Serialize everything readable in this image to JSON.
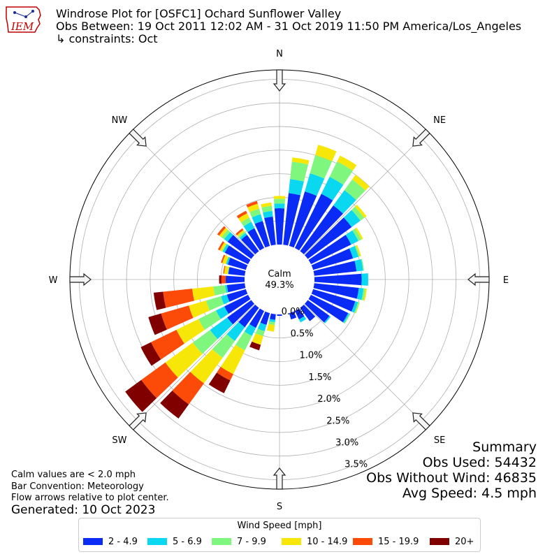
{
  "header": {
    "title": "Windrose Plot for [OSFC1] Ochard Sunflower Valley",
    "subtitle": "Obs Between: 19 Oct 2011 12:02 AM - 31 Oct 2019 11:50 PM America/Los_Angeles",
    "constraints": "↳ constraints: Oct",
    "logo_text": "IEM"
  },
  "summary": {
    "title": "Summary",
    "obs_used": "Obs Used: 54432",
    "obs_without_wind": "Obs Without Wind: 46835",
    "avg_speed": "Avg Speed: 4.5 mph"
  },
  "notes": {
    "calm_values": "Calm values are < 2.0 mph",
    "bar_convention": "Bar Convention: Meteorology",
    "flow_arrows": "Flow arrows relative to plot center.",
    "generated": "Generated: 10 Oct 2023"
  },
  "chart_data": {
    "type": "windrose",
    "center_label": "Calm",
    "center_value": "49.3%",
    "direction_labels": [
      "N",
      "NE",
      "E",
      "SE",
      "S",
      "SW",
      "W",
      "NW"
    ],
    "radial_ticks": [
      "0.0%",
      "0.5%",
      "1.0%",
      "1.5%",
      "2.0%",
      "2.5%",
      "3.0%",
      "3.5%"
    ],
    "rmax": 3.7,
    "colors": [
      "#0a2af5",
      "#0ad7f0",
      "#7ff77f",
      "#f7e709",
      "#fc4a09",
      "#800000"
    ],
    "legend_title": "Wind Speed [mph]",
    "speed_bins": [
      "2 - 4.9",
      "5 - 6.9",
      "7 - 9.9",
      "10 - 14.9",
      "15 - 19.9",
      "20+"
    ],
    "directions_deg": [
      0,
      10,
      20,
      30,
      40,
      50,
      60,
      70,
      80,
      90,
      100,
      110,
      120,
      130,
      140,
      150,
      160,
      170,
      180,
      190,
      200,
      210,
      220,
      230,
      240,
      250,
      260,
      270,
      280,
      290,
      300,
      310,
      320,
      330,
      340,
      350
    ],
    "series": [
      {
        "name": "2 - 4.9",
        "values": [
          0.77,
          1.1,
          1.2,
          1.28,
          1.2,
          1.15,
          0.95,
          0.88,
          0.9,
          1.0,
          0.95,
          0.93,
          0.88,
          0.57,
          0.35,
          0.2,
          0.14,
          0.0,
          0.03,
          0.12,
          0.26,
          0.4,
          0.51,
          0.63,
          0.56,
          0.42,
          0.38,
          0.4,
          0.35,
          0.4,
          0.55,
          0.62,
          0.43,
          0.47,
          0.55,
          0.6
        ]
      },
      {
        "name": "5 - 6.9",
        "values": [
          0.1,
          0.3,
          0.4,
          0.4,
          0.4,
          0.23,
          0.17,
          0.12,
          0.14,
          0.14,
          0.1,
          0.06,
          0.03,
          0.03,
          0.0,
          0.07,
          0.0,
          0.0,
          0.0,
          0.05,
          0.14,
          0.19,
          0.36,
          0.45,
          0.2,
          0.13,
          0.04,
          0.0,
          0.01,
          0.04,
          0.05,
          0.09,
          0.05,
          0.15,
          0.15,
          0.12
        ]
      },
      {
        "name": "7 - 9.9",
        "values": [
          0.1,
          0.37,
          0.4,
          0.36,
          0.28,
          0.1,
          0.07,
          0.03,
          0.02,
          0.0,
          0.04,
          0.03,
          0.02,
          0.0,
          0.0,
          0.0,
          0.0,
          0.0,
          0.0,
          0.06,
          0.11,
          0.34,
          0.44,
          0.45,
          0.41,
          0.33,
          0.25,
          0.0,
          0.0,
          0.0,
          0.02,
          0.07,
          0.04,
          0.1,
          0.12,
          0.11
        ]
      },
      {
        "name": "10 - 14.9",
        "values": [
          0.06,
          0.09,
          0.23,
          0.14,
          0.12,
          0.06,
          0.04,
          0.03,
          0.0,
          0.0,
          0.03,
          0.01,
          0.0,
          0.0,
          0.0,
          0.0,
          0.0,
          0.0,
          0.0,
          0.14,
          0.19,
          0.56,
          0.67,
          0.72,
          0.52,
          0.38,
          0.45,
          0.0,
          0.08,
          0.08,
          0.05,
          0.06,
          0.04,
          0.1,
          0.11,
          0.07
        ]
      },
      {
        "name": "15 - 19.9",
        "values": [
          0.0,
          0.0,
          0.0,
          0.0,
          0.0,
          0.0,
          0.0,
          0.0,
          0.0,
          0.0,
          0.0,
          0.0,
          0.0,
          0.0,
          0.0,
          0.0,
          0.0,
          0.0,
          0.0,
          0.0,
          0.0,
          0.15,
          0.55,
          0.63,
          0.6,
          0.61,
          0.62,
          0.09,
          0.02,
          0.03,
          0.04,
          0.05,
          0.04,
          0.06,
          0.06,
          0.0
        ]
      },
      {
        "name": "20+",
        "values": [
          0.0,
          0.0,
          0.0,
          0.0,
          0.0,
          0.0,
          0.0,
          0.0,
          0.0,
          0.0,
          0.0,
          0.0,
          0.0,
          0.0,
          0.0,
          0.0,
          0.0,
          0.0,
          0.0,
          0.0,
          0.12,
          0.3,
          0.37,
          0.42,
          0.24,
          0.28,
          0.2,
          0.05,
          0.0,
          0.0,
          0.0,
          0.0,
          0.0,
          0.0,
          0.0,
          0.0
        ]
      }
    ]
  }
}
